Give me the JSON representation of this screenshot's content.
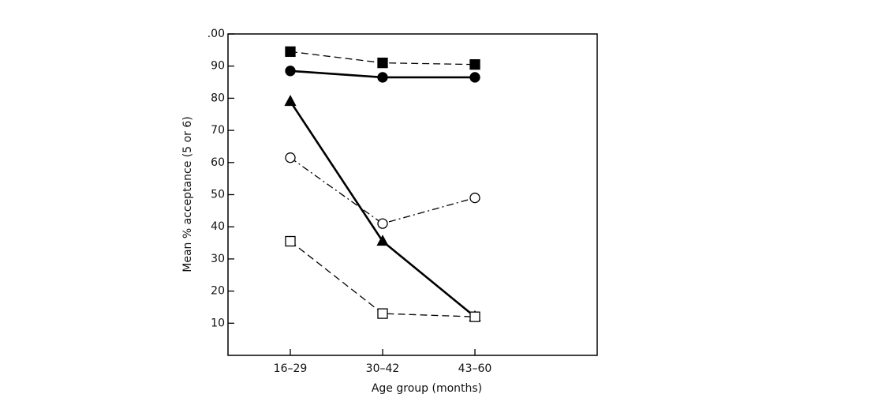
{
  "chart_data": {
    "type": "line",
    "x_label": "Age group (months)",
    "y_label": "Mean % acceptance (5 or 6)",
    "categories": [
      "16–29",
      "30–42",
      "43–60"
    ],
    "ylim": [
      0,
      100
    ],
    "yticks": [
      10,
      20,
      30,
      40,
      50,
      60,
      70,
      80,
      90,
      {
        "value": 100,
        "label": ".00"
      }
    ],
    "series": [
      {
        "color": "#000000",
        "marker": "square",
        "filled": true,
        "dash": "dashed",
        "width": 1.3,
        "values": [
          94.5,
          91,
          90.5
        ]
      },
      {
        "color": "#000000",
        "marker": "circle",
        "filled": true,
        "dash": "solid",
        "width": 2.6,
        "values": [
          88.5,
          86.5,
          86.5
        ]
      },
      {
        "color": "#000000",
        "marker": "triangle",
        "filled": true,
        "dash": "solid",
        "width": 2.6,
        "values": [
          79,
          35.5,
          12
        ]
      },
      {
        "color": "#000000",
        "marker": "circle",
        "filled": false,
        "dash": "dashdot",
        "width": 1.3,
        "values": [
          61.5,
          41,
          49
        ]
      },
      {
        "color": "#000000",
        "marker": "square",
        "filled": false,
        "dash": "dashed",
        "width": 1.3,
        "values": [
          35.5,
          13,
          12
        ]
      }
    ]
  }
}
